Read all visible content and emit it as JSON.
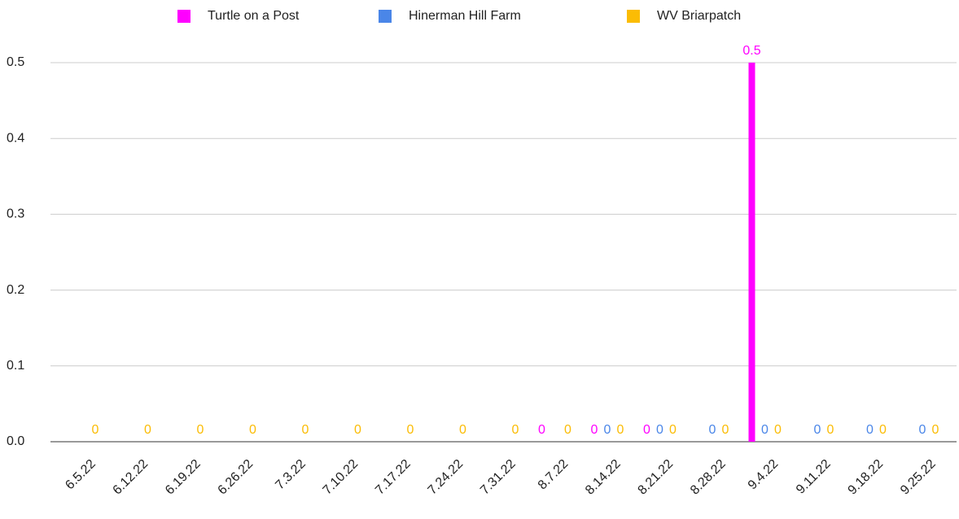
{
  "chart_data": {
    "type": "bar",
    "categories": [
      "6.5.22",
      "6.12.22",
      "6.19.22",
      "6.26.22",
      "7.3.22",
      "7.10.22",
      "7.17.22",
      "7.24.22",
      "7.31.22",
      "8.7.22",
      "8.14.22",
      "8.21.22",
      "8.28.22",
      "9.4.22",
      "9.11.22",
      "9.18.22",
      "9.25.22"
    ],
    "series": [
      {
        "name": "Turtle on a Post",
        "color": "#ff00ff",
        "values": [
          null,
          null,
          null,
          null,
          null,
          null,
          null,
          null,
          null,
          0,
          0,
          0,
          null,
          0.5,
          null,
          null,
          null
        ]
      },
      {
        "name": "Hinerman Hill Farm",
        "color": "#4a86e8",
        "values": [
          null,
          null,
          null,
          null,
          null,
          null,
          null,
          null,
          null,
          null,
          0,
          0,
          0,
          0,
          0,
          0,
          0
        ]
      },
      {
        "name": "WV Briarpatch",
        "color": "#fbbc04",
        "values": [
          0,
          0,
          0,
          0,
          0,
          0,
          0,
          0,
          0,
          0,
          0,
          0,
          0,
          0,
          0,
          0,
          0
        ]
      }
    ],
    "ylim": [
      0,
      0.5
    ],
    "yticks": [
      {
        "value": 0,
        "label": "0.0"
      },
      0.1,
      0.2,
      0.3,
      0.4,
      0.5
    ],
    "grid": true,
    "legend": "top"
  }
}
